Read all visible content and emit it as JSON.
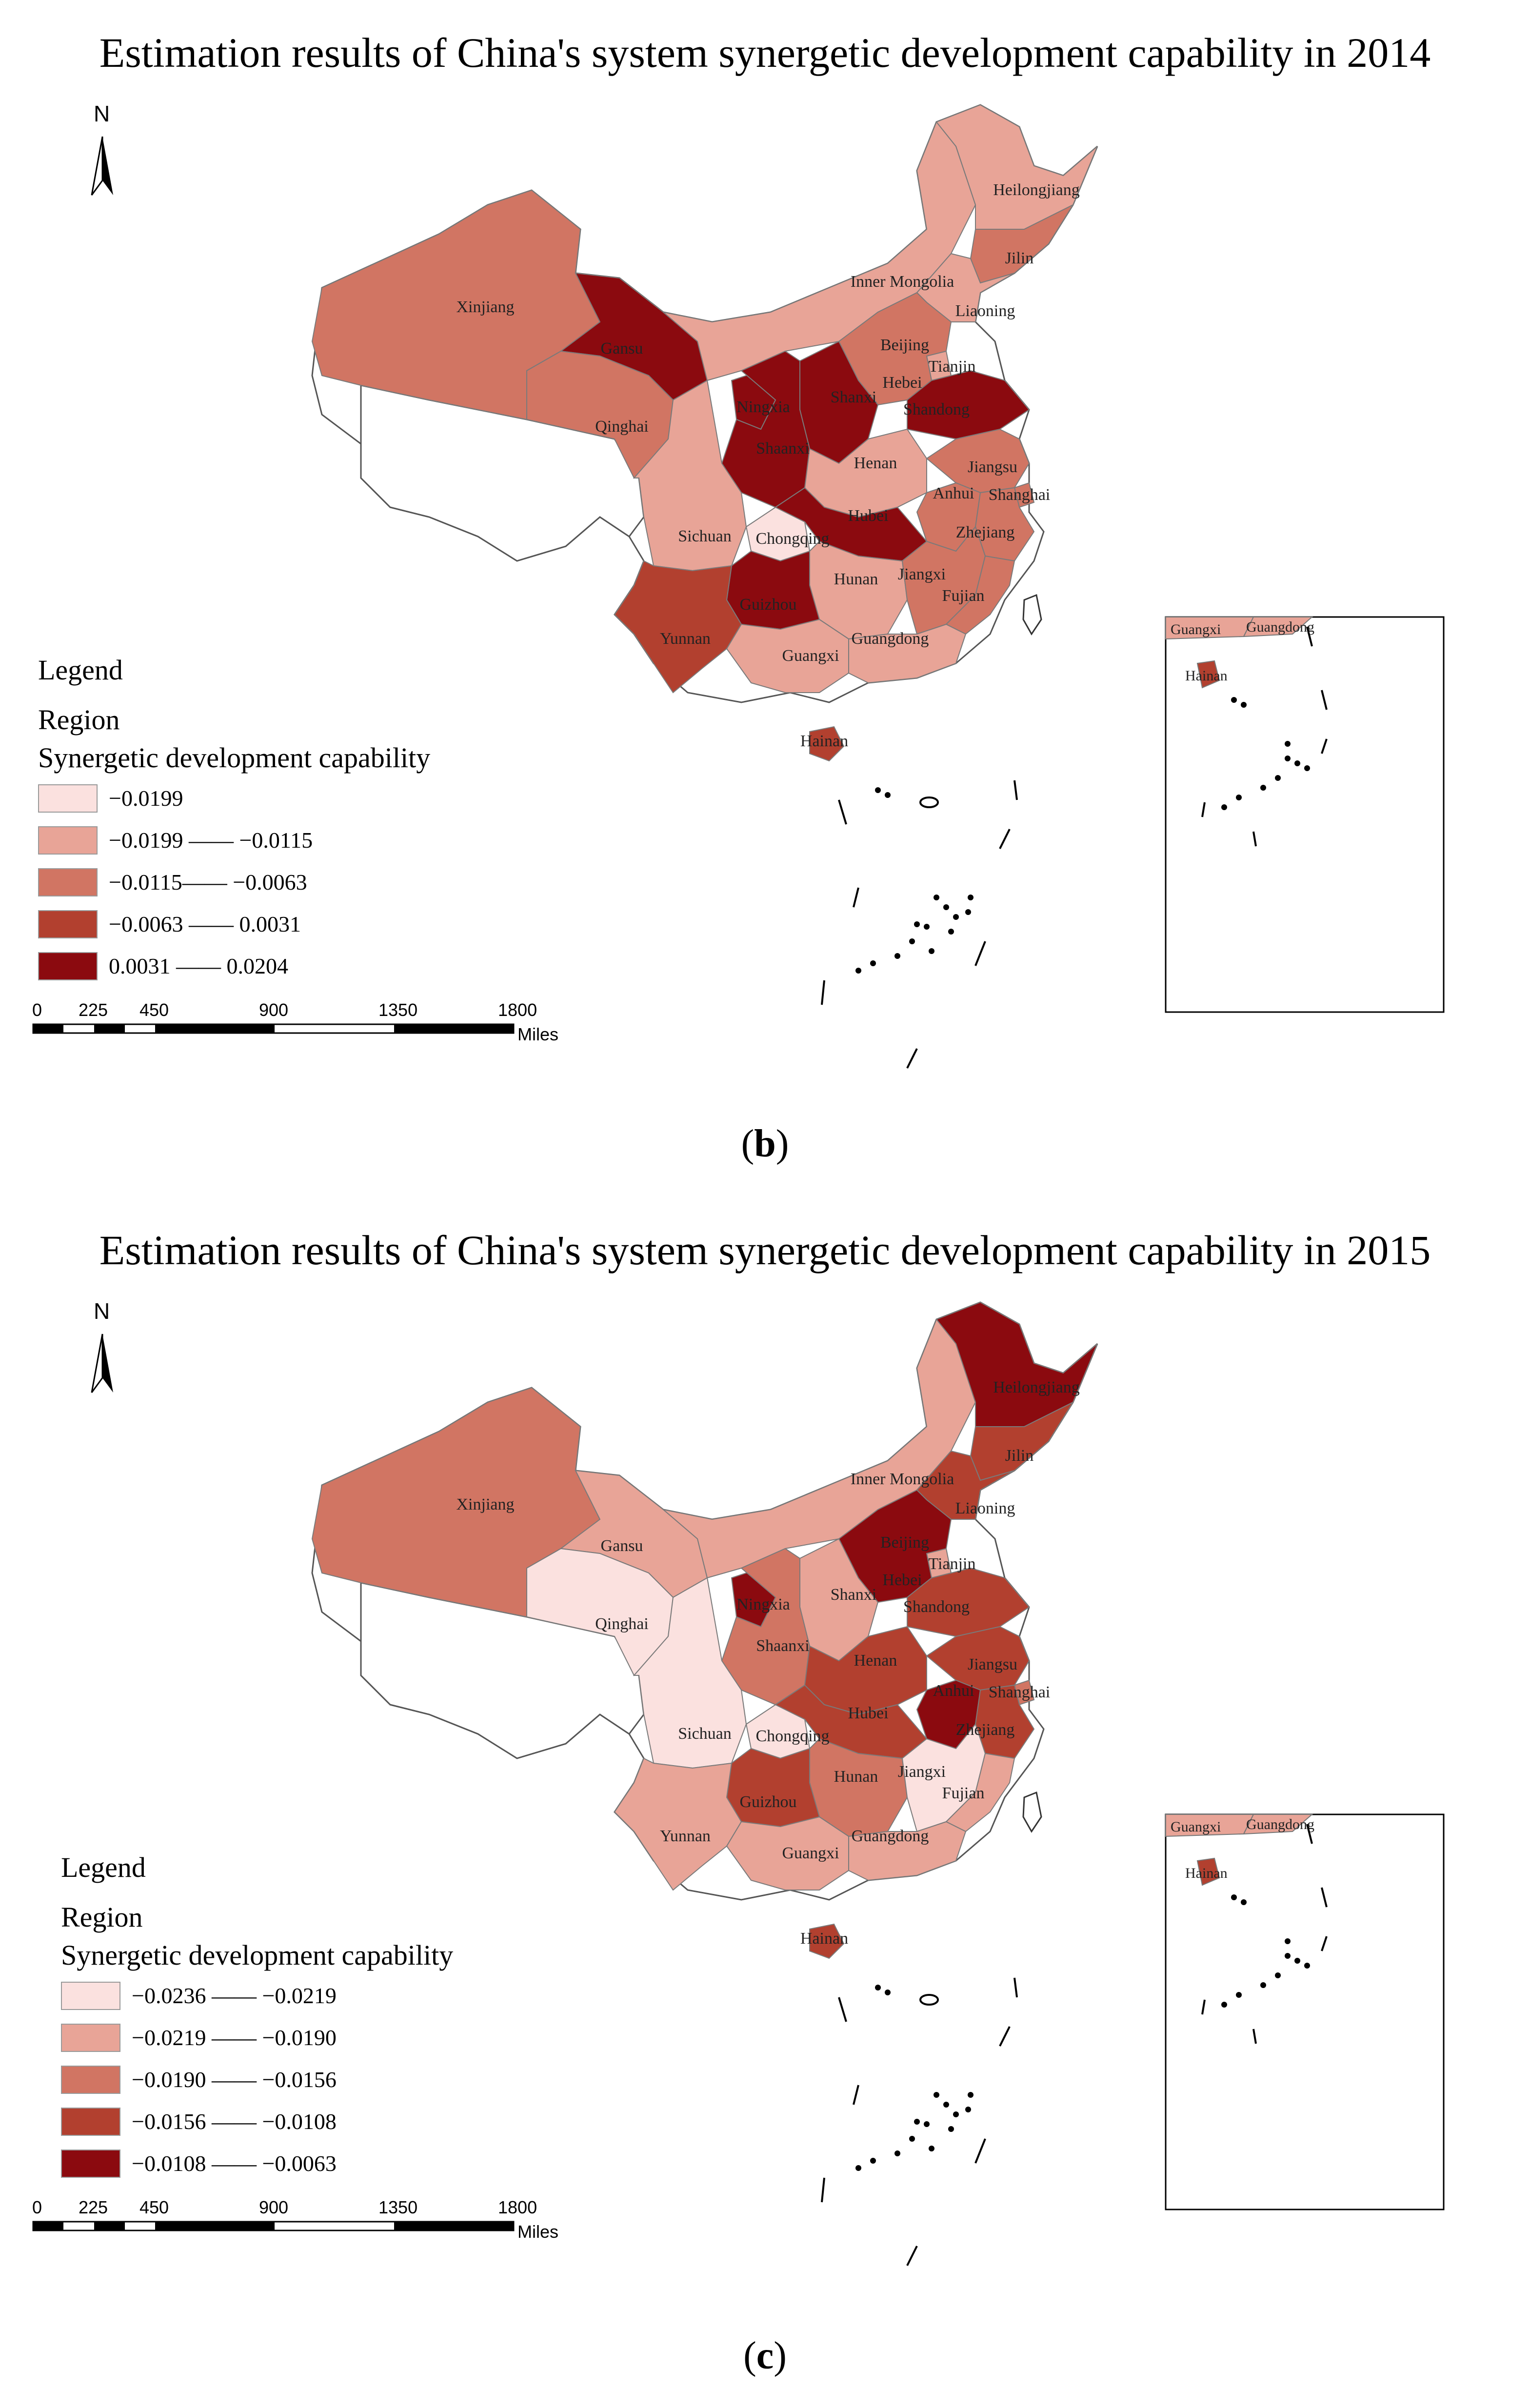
{
  "panels": [
    {
      "title": "Estimation results of China's system synergetic development capability in 2014",
      "caption_letter": "b",
      "north": "N",
      "legend": {
        "heading": "Legend",
        "region_label": "Region",
        "variable_label": "Synergetic development capability",
        "classes": [
          {
            "label": "−0.0199",
            "color": "#fbe1df"
          },
          {
            "label": "−0.0199 —— −0.0115",
            "color": "#e8a497"
          },
          {
            "label": "−0.0115—— −0.0063",
            "color": "#d17563"
          },
          {
            "label": "−0.0063 —— 0.0031",
            "color": "#b2402f"
          },
          {
            "label": "0.0031 —— 0.0204",
            "color": "#8b0a0f"
          }
        ]
      },
      "scale": {
        "ticks": [
          "0",
          "225",
          "450",
          "900",
          "1350",
          "1800"
        ],
        "unit": "Miles"
      },
      "provinces": {
        "Xinjiang": 2,
        "Gansu": 4,
        "Qinghai": 2,
        "Inner Mongolia": 1,
        "Heilongjiang": 1,
        "Jilin": 2,
        "Liaoning": 1,
        "Beijing": 2,
        "Tianjin": 1,
        "Hebei": 2,
        "Shanxi": 4,
        "Shandong": 4,
        "Ningxia": 4,
        "Shaanxi": 4,
        "Henan": 1,
        "Jiangsu": 2,
        "Anhui": 2,
        "Shanghai": 2,
        "Sichuan": 1,
        "Chongqing": 0,
        "Hubei": 4,
        "Zhejiang": 2,
        "Hunan": 1,
        "Jiangxi": 2,
        "Guizhou": 4,
        "Fujian": 2,
        "Yunnan": 3,
        "Guangxi": 1,
        "Guangdong": 1,
        "Hainan": 3
      }
    },
    {
      "title": "Estimation results of China's system synergetic development capability in 2015",
      "caption_letter": "c",
      "north": "N",
      "legend": {
        "heading": "Legend",
        "region_label": "Region",
        "variable_label": "Synergetic development capability",
        "classes": [
          {
            "label": "−0.0236 —— −0.0219",
            "color": "#fbe1df"
          },
          {
            "label": "−0.0219 —— −0.0190",
            "color": "#e8a497"
          },
          {
            "label": "−0.0190 —— −0.0156",
            "color": "#d17563"
          },
          {
            "label": "−0.0156 —— −0.0108",
            "color": "#b2402f"
          },
          {
            "label": "−0.0108 —— −0.0063",
            "color": "#8b0a0f"
          }
        ]
      },
      "scale": {
        "ticks": [
          "0",
          "225",
          "450",
          "900",
          "1350",
          "1800"
        ],
        "unit": "Miles"
      },
      "provinces": {
        "Xinjiang": 2,
        "Gansu": 1,
        "Qinghai": 0,
        "Inner Mongolia": 1,
        "Heilongjiang": 4,
        "Jilin": 3,
        "Liaoning": 3,
        "Beijing": 4,
        "Tianjin": 1,
        "Hebei": 4,
        "Shanxi": 1,
        "Shandong": 3,
        "Ningxia": 4,
        "Shaanxi": 2,
        "Henan": 3,
        "Jiangsu": 3,
        "Anhui": 4,
        "Shanghai": 2,
        "Sichuan": 0,
        "Chongqing": 0,
        "Hubei": 3,
        "Zhejiang": 3,
        "Hunan": 2,
        "Jiangxi": 0,
        "Guizhou": 3,
        "Fujian": 1,
        "Yunnan": 1,
        "Guangxi": 1,
        "Guangdong": 1,
        "Hainan": 3
      }
    }
  ]
}
